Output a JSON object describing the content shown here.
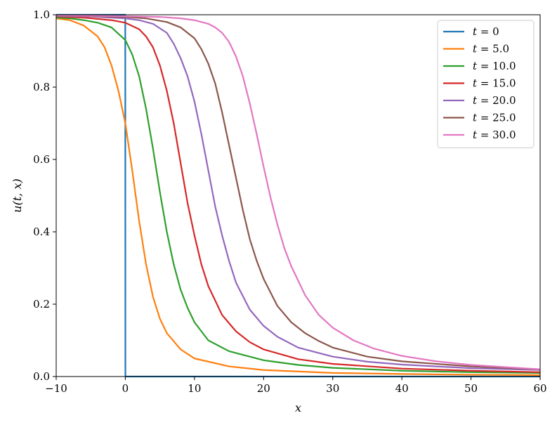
{
  "chart_data": {
    "type": "line",
    "xlabel": "x",
    "ylabel": "u(t, x)",
    "xlim": [
      -10,
      60
    ],
    "ylim": [
      0.0,
      1.0
    ],
    "xticks": [
      -10,
      0,
      10,
      20,
      30,
      40,
      50,
      60
    ],
    "xtick_labels": [
      "−10",
      "0",
      "10",
      "20",
      "30",
      "40",
      "50",
      "60"
    ],
    "yticks": [
      0.0,
      0.2,
      0.4,
      0.6,
      0.8,
      1.0
    ],
    "ytick_labels": [
      "0.0",
      "0.2",
      "0.4",
      "0.6",
      "0.8",
      "1.0"
    ],
    "grid": false,
    "legend_position": "top-right",
    "series": [
      {
        "name": "t = 0",
        "legend_var": "t",
        "legend_val": "0",
        "color": "#1f77b4",
        "x": [
          -10,
          -0.05,
          -0.01,
          0,
          0.01,
          0.05,
          10,
          20,
          30,
          40,
          50,
          60
        ],
        "y": [
          1.0,
          1.0,
          1.0,
          0.5,
          0.0,
          0.0,
          0.0,
          0.0,
          0.0,
          0.0,
          0.0,
          0.0
        ]
      },
      {
        "name": "t = 5.0",
        "legend_var": "t",
        "legend_val": "5.0",
        "color": "#ff7f0e",
        "x": [
          -10,
          -8,
          -6,
          -4,
          -3,
          -2,
          -1,
          0,
          1,
          2,
          3,
          4,
          5,
          6,
          8,
          10,
          15,
          20,
          30,
          40,
          50,
          60
        ],
        "y": [
          0.99,
          0.985,
          0.97,
          0.94,
          0.91,
          0.86,
          0.79,
          0.7,
          0.57,
          0.43,
          0.31,
          0.22,
          0.16,
          0.12,
          0.075,
          0.05,
          0.028,
          0.018,
          0.01,
          0.007,
          0.005,
          0.004
        ]
      },
      {
        "name": "t = 10.0",
        "legend_var": "t",
        "legend_val": "10.0",
        "color": "#2ca02c",
        "x": [
          -10,
          -8,
          -6,
          -4,
          -2,
          0,
          1,
          2,
          3,
          4,
          5,
          6,
          7,
          8,
          9,
          10,
          12,
          15,
          20,
          25,
          30,
          40,
          50,
          60
        ],
        "y": [
          0.992,
          0.99,
          0.985,
          0.978,
          0.965,
          0.93,
          0.89,
          0.83,
          0.74,
          0.63,
          0.51,
          0.4,
          0.31,
          0.24,
          0.19,
          0.15,
          0.1,
          0.07,
          0.045,
          0.032,
          0.024,
          0.016,
          0.012,
          0.01
        ]
      },
      {
        "name": "t = 15.0",
        "legend_var": "t",
        "legend_val": "15.0",
        "color": "#d62728",
        "x": [
          -10,
          -6,
          -2,
          0,
          2,
          3,
          4,
          5,
          6,
          7,
          8,
          9,
          10,
          11,
          12,
          14,
          16,
          18,
          20,
          25,
          30,
          40,
          50,
          60
        ],
        "y": [
          0.995,
          0.992,
          0.985,
          0.978,
          0.96,
          0.94,
          0.91,
          0.86,
          0.79,
          0.7,
          0.59,
          0.48,
          0.39,
          0.31,
          0.25,
          0.17,
          0.125,
          0.095,
          0.075,
          0.048,
          0.035,
          0.022,
          0.016,
          0.012
        ]
      },
      {
        "name": "t = 20.0",
        "legend_var": "t",
        "legend_val": "20.0",
        "color": "#9467bd",
        "x": [
          -10,
          -5,
          0,
          2,
          4,
          6,
          7,
          8,
          9,
          10,
          11,
          12,
          13,
          14,
          15,
          16,
          18,
          20,
          22,
          25,
          30,
          35,
          40,
          50,
          60
        ],
        "y": [
          0.996,
          0.995,
          0.99,
          0.985,
          0.975,
          0.95,
          0.92,
          0.88,
          0.83,
          0.76,
          0.67,
          0.57,
          0.47,
          0.39,
          0.32,
          0.26,
          0.185,
          0.14,
          0.11,
          0.08,
          0.055,
          0.041,
          0.033,
          0.023,
          0.018
        ]
      },
      {
        "name": "t = 25.0",
        "legend_var": "t",
        "legend_val": "25.0",
        "color": "#8c564b",
        "x": [
          -10,
          -5,
          0,
          3,
          6,
          8,
          10,
          11,
          12,
          13,
          14,
          15,
          16,
          17,
          18,
          19,
          20,
          22,
          24,
          26,
          28,
          30,
          35,
          40,
          50,
          60
        ],
        "y": [
          0.997,
          0.996,
          0.994,
          0.99,
          0.98,
          0.965,
          0.935,
          0.905,
          0.865,
          0.81,
          0.73,
          0.64,
          0.55,
          0.46,
          0.38,
          0.32,
          0.27,
          0.195,
          0.15,
          0.12,
          0.098,
          0.08,
          0.055,
          0.042,
          0.028,
          0.02
        ]
      },
      {
        "name": "t = 30.0",
        "legend_var": "t",
        "legend_val": "30.0",
        "color": "#e377c2",
        "x": [
          -10,
          -5,
          0,
          5,
          8,
          10,
          12,
          13,
          14,
          15,
          16,
          17,
          18,
          19,
          20,
          21,
          22,
          23,
          24,
          26,
          28,
          30,
          33,
          36,
          40,
          45,
          50,
          60
        ],
        "y": [
          0.998,
          0.997,
          0.996,
          0.994,
          0.99,
          0.985,
          0.975,
          0.965,
          0.95,
          0.925,
          0.885,
          0.83,
          0.755,
          0.67,
          0.58,
          0.495,
          0.42,
          0.355,
          0.305,
          0.225,
          0.17,
          0.135,
          0.1,
          0.077,
          0.057,
          0.042,
          0.032,
          0.02
        ]
      }
    ]
  }
}
